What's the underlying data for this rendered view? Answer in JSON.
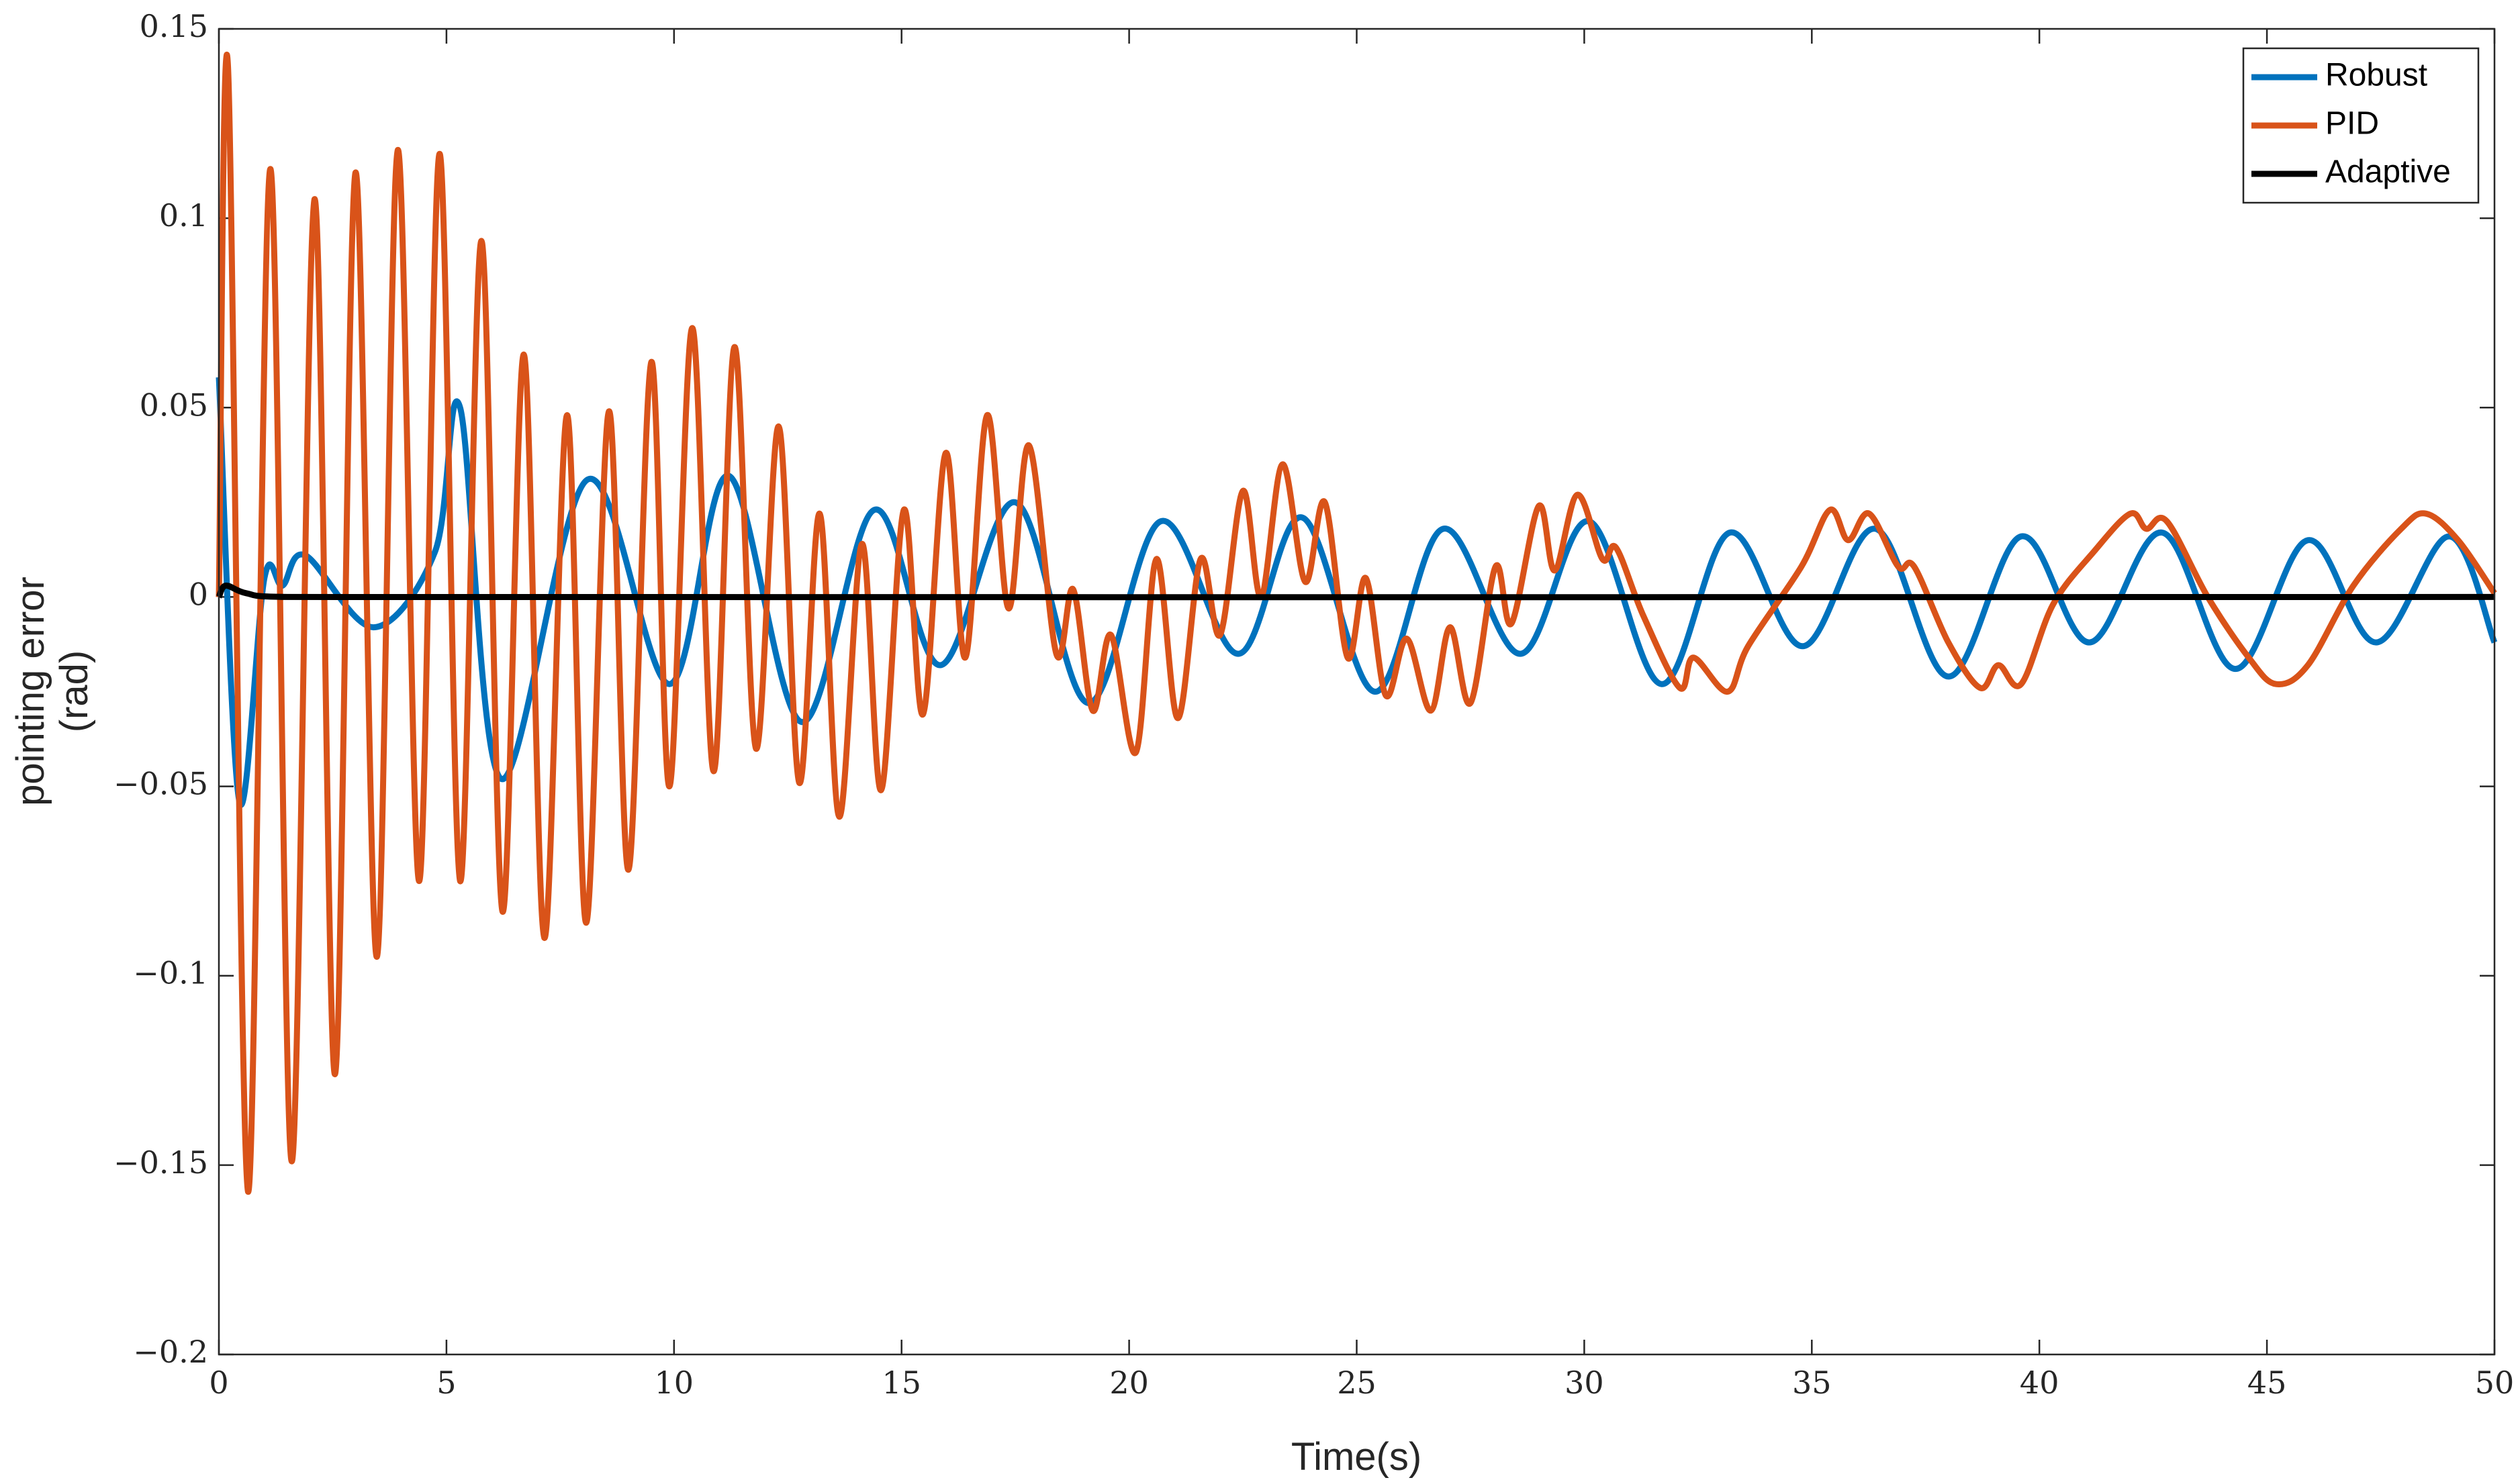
{
  "chart_data": {
    "type": "line",
    "x_label": "Time(s)",
    "y_label": [
      "pointing error",
      "(rad)"
    ],
    "xlim": [
      0,
      50
    ],
    "ylim": [
      -0.2,
      0.15
    ],
    "xticks": [
      0,
      5,
      10,
      15,
      20,
      25,
      30,
      35,
      40,
      45,
      50
    ],
    "yticks": [
      {
        "value": -0.2,
        "label": "−0.2"
      },
      {
        "value": -0.15,
        "label": "−0.15"
      },
      {
        "value": -0.1,
        "label": "−0.1"
      },
      {
        "value": -0.05,
        "label": "−0.05"
      },
      0,
      0.05,
      0.1,
      0.15
    ],
    "legend": "top-right",
    "series": [
      {
        "name": "Robust",
        "color": "#0072bd",
        "x": [
          0,
          0.45,
          1.0,
          1.4,
          1.9,
          3.4,
          4.75,
          5.3,
          6.2,
          8.1,
          9.9,
          11.2,
          12.8,
          14.4,
          15.85,
          17.5,
          19.1,
          20.7,
          22.4,
          23.8,
          25.4,
          26.9,
          28.6,
          30.1,
          31.7,
          33.2,
          34.8,
          36.4,
          38.0,
          39.6,
          41.1,
          42.7,
          44.3,
          45.9,
          47.4,
          49.0,
          50
        ],
        "values": [
          0.058,
          -0.054,
          0.005,
          0.003,
          0.011,
          -0.008,
          0.012,
          0.05,
          -0.048,
          0.031,
          -0.023,
          0.032,
          -0.033,
          0.023,
          -0.018,
          0.025,
          -0.028,
          0.02,
          -0.015,
          0.021,
          -0.025,
          0.018,
          -0.015,
          0.02,
          -0.023,
          0.017,
          -0.013,
          0.018,
          -0.021,
          0.016,
          -0.012,
          0.017,
          -0.019,
          0.015,
          -0.012,
          0.016,
          -0.012
        ]
      },
      {
        "name": "PID",
        "color": "#d95319",
        "x": [
          0,
          0.2,
          0.64,
          1.13,
          1.6,
          2.1,
          2.55,
          3.0,
          3.47,
          3.93,
          4.4,
          4.85,
          5.3,
          5.77,
          6.23,
          6.7,
          7.15,
          7.65,
          8.07,
          8.57,
          9.0,
          9.5,
          9.9,
          10.4,
          10.87,
          11.33,
          11.8,
          12.3,
          12.75,
          13.2,
          13.63,
          14.13,
          14.55,
          15.05,
          15.47,
          15.97,
          16.4,
          16.88,
          17.35,
          17.8,
          18.4,
          18.77,
          19.2,
          19.6,
          20.15,
          20.6,
          21.07,
          21.57,
          22.0,
          22.5,
          22.9,
          23.37,
          23.87,
          24.3,
          24.8,
          25.2,
          25.64,
          26.1,
          26.63,
          27.05,
          27.5,
          28.05,
          28.4,
          29.0,
          29.35,
          29.85,
          30.4,
          30.7,
          31.3,
          32.1,
          32.4,
          33.15,
          33.6,
          34.77,
          35.4,
          35.8,
          36.26,
          36.9,
          37.25,
          38.0,
          38.7,
          39.1,
          39.6,
          40.3,
          41.2,
          42.0,
          42.35,
          42.8,
          43.7,
          44.6,
          45.2,
          45.9,
          46.9,
          47.95,
          48.5,
          49.2,
          50
        ],
        "values": [
          0.0,
          0.14,
          -0.157,
          0.113,
          -0.149,
          0.105,
          -0.126,
          0.112,
          -0.095,
          0.118,
          -0.075,
          0.117,
          -0.075,
          0.094,
          -0.083,
          0.064,
          -0.09,
          0.048,
          -0.086,
          0.049,
          -0.072,
          0.062,
          -0.05,
          0.071,
          -0.046,
          0.066,
          -0.04,
          0.045,
          -0.049,
          0.022,
          -0.058,
          0.014,
          -0.051,
          0.023,
          -0.031,
          0.038,
          -0.016,
          0.048,
          -0.003,
          0.04,
          -0.015,
          0.002,
          -0.03,
          -0.01,
          -0.041,
          0.01,
          -0.032,
          0.01,
          -0.01,
          0.028,
          0.0,
          0.035,
          0.004,
          0.025,
          -0.016,
          0.005,
          -0.026,
          -0.011,
          -0.03,
          -0.008,
          -0.028,
          0.008,
          -0.007,
          0.024,
          0.007,
          0.027,
          0.01,
          0.013,
          -0.005,
          -0.024,
          -0.016,
          -0.025,
          -0.013,
          0.008,
          0.023,
          0.015,
          0.022,
          0.008,
          0.008,
          -0.012,
          -0.024,
          -0.018,
          -0.023,
          -0.002,
          0.012,
          0.022,
          0.018,
          0.02,
          0.0,
          -0.016,
          -0.023,
          -0.018,
          0.003,
          0.018,
          0.022,
          0.015,
          0.001
        ]
      },
      {
        "name": "Adaptive",
        "color": "#000000",
        "x": [
          0,
          0.15,
          0.6,
          1.5,
          50
        ],
        "values": [
          0,
          0.003,
          0.001,
          0,
          0
        ]
      }
    ]
  }
}
